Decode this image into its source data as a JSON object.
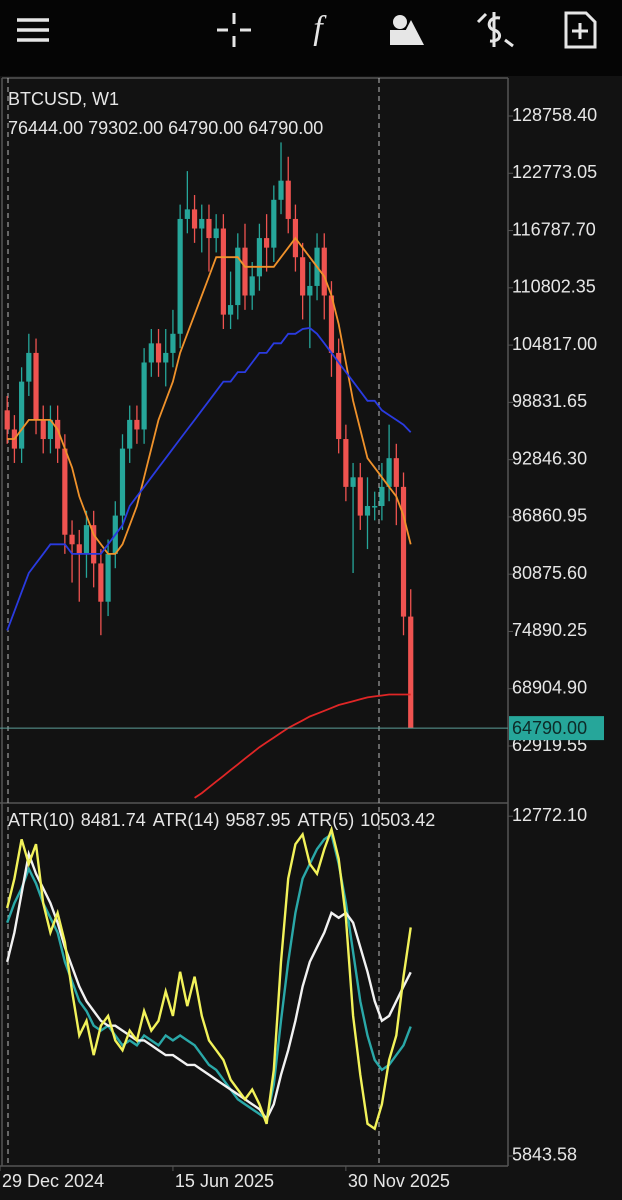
{
  "toolbar": {
    "function_icon": "f"
  },
  "chart_data": [
    {
      "type": "candlestick",
      "title": "BTCUSD, W1",
      "ohlc_label": "76444.00 79302.00 64790.00 64790.00",
      "x": [
        1,
        2,
        3,
        4,
        5,
        6,
        7,
        8,
        9,
        10,
        11,
        12,
        13,
        14,
        15,
        16,
        17,
        18,
        19,
        20,
        21,
        22,
        23,
        24,
        25,
        26,
        27,
        28,
        29,
        30,
        31,
        32,
        33,
        34,
        35,
        36,
        37,
        38,
        39,
        40,
        41,
        42,
        43,
        44,
        45,
        46,
        47,
        48,
        49,
        50,
        51,
        52,
        53,
        54,
        55,
        56,
        57
      ],
      "open": [
        98000,
        96000,
        94000,
        101000,
        104000,
        97000,
        95000,
        97000,
        94000,
        85000,
        84000,
        83000,
        86000,
        82000,
        78000,
        83000,
        87000,
        94000,
        97000,
        96000,
        103000,
        105000,
        103000,
        104000,
        106000,
        118000,
        119000,
        117000,
        118000,
        116000,
        117000,
        108000,
        109000,
        115000,
        110000,
        112000,
        116000,
        115000,
        120000,
        122000,
        118000,
        114000,
        110000,
        111000,
        115000,
        110000,
        104000,
        95000,
        90000,
        91000,
        87000,
        88000,
        88000,
        90000,
        93000,
        90000,
        76444
      ],
      "high": [
        99500,
        97500,
        102500,
        106000,
        105500,
        98500,
        98500,
        98500,
        95500,
        86500,
        85500,
        87500,
        87500,
        83500,
        84500,
        88500,
        95500,
        98500,
        98500,
        104500,
        106500,
        106500,
        106500,
        108500,
        119500,
        123000,
        120500,
        119500,
        119500,
        118500,
        118500,
        112500,
        116500,
        117500,
        113500,
        117500,
        118500,
        121500,
        126000,
        124500,
        119500,
        115500,
        113500,
        116500,
        116500,
        111500,
        105500,
        96500,
        92500,
        92500,
        91000,
        89500,
        92500,
        96500,
        94500,
        91500,
        79302
      ],
      "low": [
        94500,
        92500,
        92500,
        99500,
        95500,
        93500,
        93500,
        92500,
        83000,
        80000,
        78000,
        80500,
        79500,
        74500,
        76500,
        81500,
        85500,
        92500,
        94500,
        94500,
        101500,
        101500,
        100500,
        102500,
        104500,
        116500,
        115500,
        114500,
        112500,
        114500,
        106500,
        106500,
        107500,
        108500,
        108500,
        110500,
        112500,
        113500,
        118500,
        116500,
        112500,
        107500,
        104500,
        109500,
        107500,
        101500,
        93500,
        88500,
        81000,
        85500,
        83500,
        86500,
        86500,
        88500,
        86000,
        74500,
        64790
      ],
      "close": [
        96000,
        94000,
        101000,
        104000,
        97000,
        95000,
        97000,
        94000,
        85000,
        84000,
        83000,
        86000,
        82000,
        78000,
        83000,
        87000,
        94000,
        97000,
        96000,
        103000,
        105000,
        103000,
        104000,
        106000,
        118000,
        119000,
        117000,
        118000,
        116000,
        117000,
        108000,
        109000,
        115000,
        110000,
        112000,
        116000,
        115000,
        120000,
        122000,
        118000,
        114000,
        110000,
        111000,
        115000,
        110000,
        104000,
        95000,
        90000,
        91000,
        87000,
        88000,
        88000,
        90000,
        93000,
        90000,
        76444,
        64790
      ],
      "up_color": "#26a69a",
      "down_color": "#ef5350",
      "series": [
        {
          "color": "#f0922b",
          "values": [
            95000,
            95000,
            96000,
            97000,
            97000,
            97000,
            97000,
            96000,
            94000,
            92000,
            89000,
            87000,
            85000,
            84000,
            83000,
            83000,
            84000,
            86000,
            88000,
            91000,
            94000,
            97000,
            99000,
            101000,
            104000,
            106000,
            108000,
            110000,
            112000,
            114000,
            114000,
            114000,
            114000,
            113000,
            113000,
            113000,
            113000,
            113000,
            114000,
            115000,
            116000,
            115000,
            114000,
            113000,
            112000,
            110000,
            107000,
            103000,
            99000,
            96000,
            93000,
            92000,
            91000,
            90000,
            89000,
            87000,
            84000
          ]
        },
        {
          "color": "#2a3be0",
          "values": [
            75000,
            77000,
            79000,
            81000,
            82000,
            83000,
            84000,
            84000,
            84000,
            83000,
            83000,
            83000,
            83000,
            83000,
            84000,
            85000,
            86000,
            88000,
            89000,
            90000,
            91000,
            92000,
            93000,
            94000,
            95000,
            96000,
            97000,
            98000,
            99000,
            100000,
            101000,
            101000,
            102000,
            102000,
            103000,
            104000,
            104000,
            105000,
            105000,
            106000,
            106000,
            106500,
            106600,
            106000,
            105000,
            104000,
            103000,
            102000,
            101000,
            100000,
            99000,
            99000,
            98000,
            97500,
            97000,
            96500,
            95700
          ]
        },
        {
          "color": "#e02626",
          "values": [
            null,
            null,
            null,
            null,
            null,
            null,
            null,
            null,
            null,
            null,
            null,
            null,
            null,
            null,
            null,
            null,
            null,
            null,
            null,
            null,
            null,
            null,
            null,
            null,
            null,
            null,
            57500,
            58000,
            58600,
            59200,
            59800,
            60400,
            61000,
            61600,
            62200,
            62800,
            63300,
            63800,
            64300,
            64800,
            65200,
            65600,
            66000,
            66300,
            66600,
            66900,
            67200,
            67400,
            67600,
            67800,
            68000,
            68100,
            68200,
            68300,
            68300,
            68300,
            68300
          ]
        }
      ],
      "last_price": {
        "value": 64790,
        "label": "64790.00"
      },
      "ylim": [
        57068,
        132730
      ],
      "yticks": [
        {
          "value": 128758.4,
          "label": "128758.40"
        },
        {
          "value": 122773.05,
          "label": "122773.05"
        },
        {
          "value": 116787.7,
          "label": "116787.70"
        },
        {
          "value": 110802.35,
          "label": "110802.35"
        },
        {
          "value": 104817,
          "label": "104817.00"
        },
        {
          "value": 98831.65,
          "label": "98831.65"
        },
        {
          "value": 92846.3,
          "label": "92846.30"
        },
        {
          "value": 86860.95,
          "label": "86860.95"
        },
        {
          "value": 80875.6,
          "label": "80875.60"
        },
        {
          "value": 74890.25,
          "label": "74890.25"
        },
        {
          "value": 68904.9,
          "label": "68904.90"
        },
        {
          "value": 62919.55,
          "label": "62919.55"
        }
      ],
      "xlim": [
        0,
        70.5
      ],
      "xticks": [
        {
          "value": 0,
          "label": "29 Dec 2024"
        },
        {
          "value": 24,
          "label": "15 Jun 2025"
        },
        {
          "value": 48,
          "label": "30 Nov 2025"
        }
      ]
    },
    {
      "type": "line",
      "x": [
        1,
        2,
        3,
        4,
        5,
        6,
        7,
        8,
        9,
        10,
        11,
        12,
        13,
        14,
        15,
        16,
        17,
        18,
        19,
        20,
        21,
        22,
        23,
        24,
        25,
        26,
        27,
        28,
        29,
        30,
        31,
        32,
        33,
        34,
        35,
        36,
        37,
        38,
        39,
        40,
        41,
        42,
        43,
        44,
        45,
        46,
        47,
        48,
        49,
        50,
        51,
        52,
        53,
        54,
        55,
        56,
        57
      ],
      "series": [
        {
          "name": "ATR(10)",
          "current_label": "8481.74",
          "color": "#2aa8a8",
          "values": [
            10600,
            11000,
            11300,
            11700,
            11400,
            11000,
            10700,
            10400,
            9800,
            9400,
            9000,
            8800,
            8500,
            8400,
            8500,
            8300,
            8100,
            8200,
            8100,
            8300,
            8200,
            8100,
            8300,
            8200,
            8300,
            8200,
            8100,
            7900,
            7700,
            7600,
            7400,
            7200,
            7000,
            6900,
            6800,
            6700,
            6600,
            7300,
            8600,
            9800,
            10800,
            11500,
            11800,
            12100,
            12300,
            12400,
            11800,
            11000,
            10000,
            9000,
            8300,
            7800,
            7600,
            7700,
            7900,
            8100,
            8481.74
          ]
        },
        {
          "name": "ATR(14)",
          "current_label": "9587.95",
          "color": "#f2f2f2",
          "values": [
            9800,
            10400,
            11200,
            12000,
            11600,
            11300,
            11000,
            10600,
            10100,
            9700,
            9300,
            9000,
            8800,
            8600,
            8500,
            8500,
            8400,
            8300,
            8200,
            8200,
            8100,
            8000,
            7900,
            7900,
            7800,
            7700,
            7700,
            7600,
            7500,
            7400,
            7300,
            7200,
            7100,
            7000,
            6900,
            6800,
            6600,
            6900,
            7500,
            8000,
            8600,
            9300,
            9800,
            10100,
            10400,
            10800,
            10700,
            10800,
            10600,
            10100,
            9600,
            9000,
            8600,
            8700,
            9000,
            9300,
            9587.95
          ]
        },
        {
          "name": "ATR(5)",
          "current_label": "10503.42",
          "color": "#f2f25a",
          "values": [
            10900,
            11500,
            12300,
            11800,
            12200,
            11000,
            10400,
            10800,
            10200,
            9200,
            8300,
            8600,
            7900,
            8500,
            8700,
            8200,
            8000,
            8400,
            8200,
            8800,
            8400,
            8600,
            9200,
            8700,
            9600,
            8900,
            9500,
            8700,
            8200,
            8000,
            7800,
            7400,
            7200,
            7000,
            7200,
            6900,
            6500,
            7600,
            9800,
            11500,
            12200,
            12400,
            11800,
            11600,
            12100,
            12500,
            11900,
            10700,
            8700,
            7500,
            6500,
            6400,
            6900,
            7800,
            8300,
            9500,
            10503.42
          ]
        }
      ],
      "ylim": [
        5660,
        13000
      ],
      "yticks": [
        {
          "value": 12772.1,
          "label": "12772.10"
        },
        {
          "value": 5843.58,
          "label": "5843.58"
        }
      ]
    }
  ]
}
